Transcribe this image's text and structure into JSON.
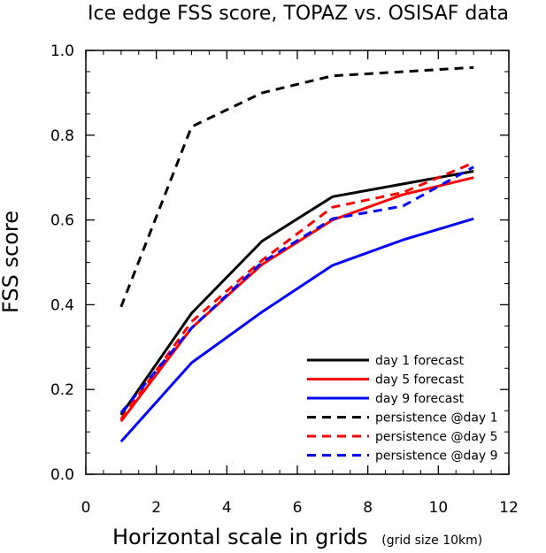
{
  "chart_data": {
    "type": "line",
    "title": "Ice edge FSS score, TOPAZ vs. OSISAF data",
    "xlabel": "Horizontal scale in grids",
    "xlabel_note": "(grid size 10km)",
    "ylabel": "FSS score",
    "xlim": [
      0,
      12
    ],
    "ylim": [
      0,
      1
    ],
    "x_ticks": [
      "0",
      "2",
      "4",
      "6",
      "8",
      "10",
      "12"
    ],
    "y_ticks": [
      "0.0",
      "0.2",
      "0.4",
      "0.6",
      "0.8",
      "1.0"
    ],
    "x": [
      1,
      3,
      5,
      7,
      9,
      11
    ],
    "grid": false,
    "legend_position": "bottom-right",
    "series": [
      {
        "name": "day 1 forecast",
        "color": "#000000",
        "dashed": false,
        "values": [
          0.14,
          0.38,
          0.55,
          0.655,
          0.685,
          0.715
        ]
      },
      {
        "name": "day 5 forecast",
        "color": "#ff0000",
        "dashed": false,
        "values": [
          0.125,
          0.345,
          0.495,
          0.6,
          0.66,
          0.7
        ]
      },
      {
        "name": "day 9 forecast",
        "color": "#0000ff",
        "dashed": false,
        "values": [
          0.077,
          0.263,
          0.383,
          0.493,
          0.553,
          0.603
        ]
      },
      {
        "name": "persistence @day 1",
        "color": "#000000",
        "dashed": true,
        "values": [
          0.395,
          0.82,
          0.9,
          0.94,
          0.95,
          0.96
        ]
      },
      {
        "name": "persistence @day 5",
        "color": "#ff0000",
        "dashed": true,
        "values": [
          0.13,
          0.36,
          0.505,
          0.63,
          0.665,
          0.735
        ]
      },
      {
        "name": "persistence @day 9",
        "color": "#0000ff",
        "dashed": true,
        "values": [
          0.145,
          0.345,
          0.5,
          0.603,
          0.633,
          0.725
        ]
      }
    ]
  }
}
